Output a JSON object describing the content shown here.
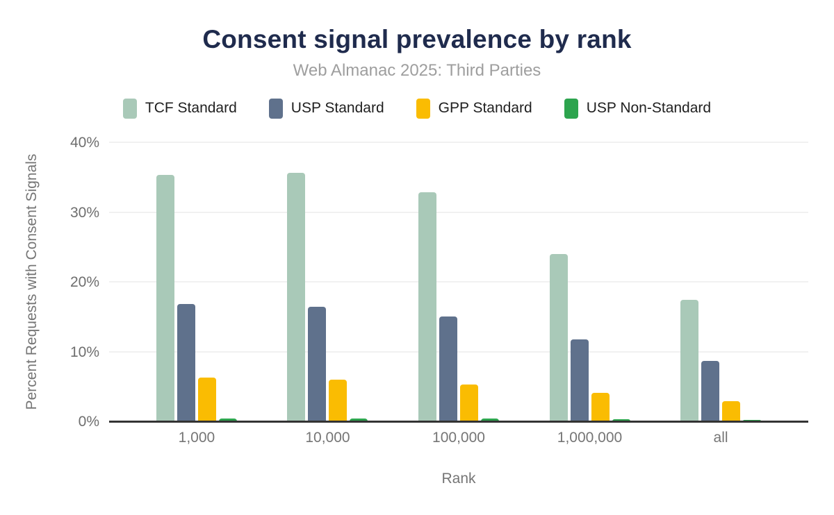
{
  "header": {
    "title": "Consent signal prevalence by rank",
    "subtitle": "Web Almanac 2025: Third Parties"
  },
  "chart_data": {
    "type": "bar",
    "title": "Consent signal prevalence by rank",
    "subtitle": "Web Almanac 2025: Third Parties",
    "xlabel": "Rank",
    "ylabel": "Percent Requests with Consent Signals",
    "categories": [
      "1,000",
      "10,000",
      "100,000",
      "1,000,000",
      "all"
    ],
    "series": [
      {
        "name": "TCF Standard",
        "color": "#a9c9b8",
        "values": [
          35.3,
          35.6,
          32.8,
          24.0,
          17.4
        ]
      },
      {
        "name": "USP Standard",
        "color": "#5f718c",
        "values": [
          16.8,
          16.4,
          15.0,
          11.7,
          8.7
        ]
      },
      {
        "name": "GPP Standard",
        "color": "#fabc02",
        "values": [
          6.3,
          6.0,
          5.3,
          4.1,
          2.9
        ]
      },
      {
        "name": "USP Non-Standard",
        "color": "#2da44e",
        "values": [
          0.4,
          0.4,
          0.4,
          0.3,
          0.2
        ]
      }
    ],
    "ylim": [
      0,
      40
    ],
    "ytick_labels": [
      "0%",
      "10%",
      "20%",
      "30%",
      "40%"
    ],
    "ytick_values": [
      0,
      10,
      20,
      30,
      40
    ],
    "grid": true,
    "legend_position": "top",
    "group_center_percents": [
      12.52,
      31.26,
      50.0,
      68.74,
      87.48
    ]
  },
  "colors": {
    "title": "#1f2b4d",
    "subtitle": "#9e9e9e",
    "axis_text": "#757575",
    "tick_text": "#6e6e6e",
    "legend_text": "#1f1f1f",
    "gridline": "#f1f1f1",
    "axis_line": "#333333",
    "background": "#ffffff"
  }
}
